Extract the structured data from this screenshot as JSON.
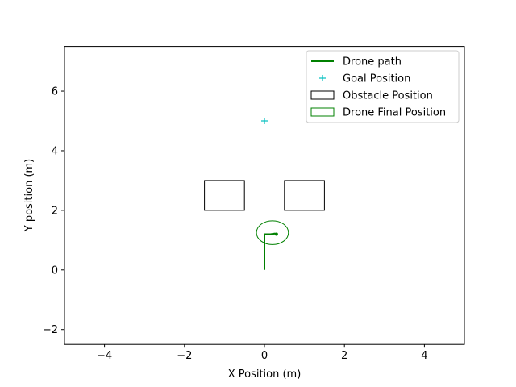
{
  "chart_data": {
    "type": "line",
    "title": "",
    "xlabel": "X Position (m)",
    "ylabel": "Y position (m)",
    "xlim": [
      -5,
      5
    ],
    "ylim": [
      -2.5,
      7.5
    ],
    "xticks": [
      -4,
      -2,
      0,
      2,
      4
    ],
    "xtick_labels": [
      "−4",
      "−2",
      "0",
      "2",
      "4"
    ],
    "yticks": [
      -2,
      0,
      2,
      4,
      6
    ],
    "ytick_labels": [
      "−2",
      "0",
      "2",
      "4",
      "6"
    ],
    "grid": false,
    "legend_position": "top-right",
    "series": [
      {
        "name": "Drone path",
        "kind": "line",
        "color": "#008000",
        "x": [
          0.0,
          0.0,
          0.0,
          0.0,
          0.15,
          0.26,
          0.3
        ],
        "y": [
          0.0,
          0.4,
          0.8,
          1.2,
          1.2,
          1.22,
          1.2
        ]
      },
      {
        "name": "Goal Position",
        "kind": "marker",
        "marker": "+",
        "color": "#00bfbf",
        "x": [
          0.0
        ],
        "y": [
          5.0
        ]
      },
      {
        "name": "Obstacle Position",
        "kind": "rectangles",
        "color": "#000000",
        "rects": [
          {
            "x": -1.5,
            "y": 2.0,
            "width": 1.0,
            "height": 1.0
          },
          {
            "x": 0.5,
            "y": 2.0,
            "width": 1.0,
            "height": 1.0
          }
        ]
      },
      {
        "name": "Drone Final Position",
        "kind": "circle",
        "color": "#008000",
        "center": [
          0.2,
          1.25
        ],
        "radius": 0.4
      }
    ]
  }
}
